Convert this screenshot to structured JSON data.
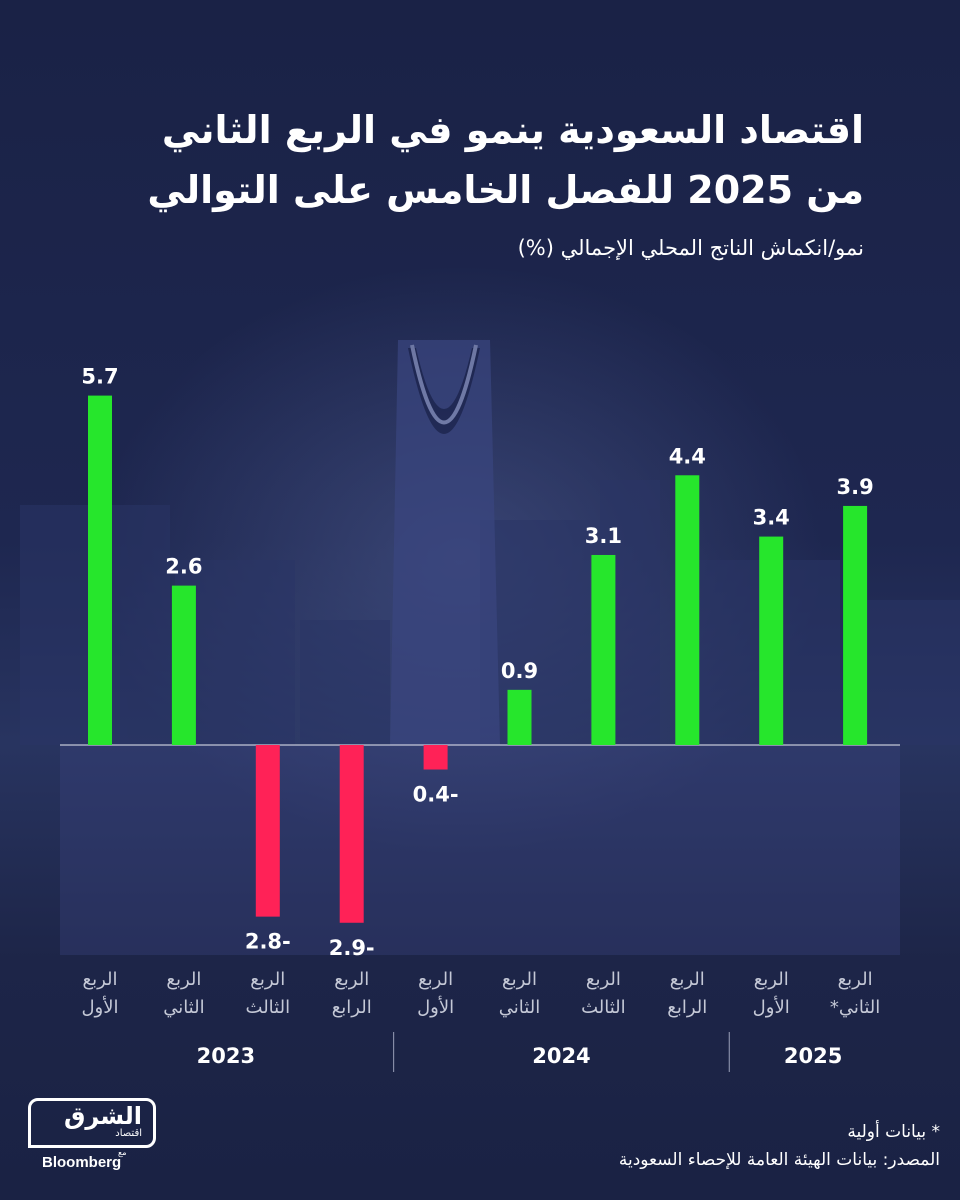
{
  "header": {
    "title_line1": "اقتصاد السعودية ينمو في  الربع الثاني",
    "title_line2": "من 2025 للفصل الخامس على التوالي",
    "subtitle": "نمو/انكماش الناتج المحلي الإجمالي (%)"
  },
  "footer": {
    "note": "* بيانات أولية",
    "source": "المصدر: بيانات الهيئة العامة للإحصاء السعودية"
  },
  "logo": {
    "main": "الشرق",
    "sub": "اقتصاد",
    "with": "مع",
    "partner": "Bloomberg"
  },
  "colors": {
    "positive": "#26e62c",
    "negative": "#ff2257",
    "background": "#1b2244",
    "text": "#ffffff",
    "tick_label": "#c4c8d6"
  },
  "chart_data": {
    "type": "bar",
    "title": "اقتصاد السعودية ينمو في  الربع الثاني من 2025 للفصل الخامس على التوالي",
    "ylabel": "نمو/انكماش الناتج المحلي الإجمالي (%)",
    "ylim": [
      -4,
      6
    ],
    "grid": false,
    "categories": [
      {
        "label_line1": "الربع",
        "label_line2": "الأول",
        "year": "2023"
      },
      {
        "label_line1": "الربع",
        "label_line2": "الثاني",
        "year": "2023"
      },
      {
        "label_line1": "الربع",
        "label_line2": "الثالث",
        "year": "2023"
      },
      {
        "label_line1": "الربع",
        "label_line2": "الرابع",
        "year": "2023"
      },
      {
        "label_line1": "الربع",
        "label_line2": "الأول",
        "year": "2024"
      },
      {
        "label_line1": "الربع",
        "label_line2": "الثاني",
        "year": "2024"
      },
      {
        "label_line1": "الربع",
        "label_line2": "الثالث",
        "year": "2024"
      },
      {
        "label_line1": "الربع",
        "label_line2": "الرابع",
        "year": "2024"
      },
      {
        "label_line1": "الربع",
        "label_line2": "الأول",
        "year": "2025"
      },
      {
        "label_line1": "الربع",
        "label_line2": "الثاني*",
        "year": "2025"
      }
    ],
    "values": [
      5.7,
      2.6,
      -2.8,
      -2.9,
      -0.4,
      0.9,
      3.1,
      4.4,
      3.4,
      3.9
    ],
    "value_labels": [
      "5.7",
      "2.6",
      "2.8-",
      "2.9-",
      "0.4-",
      "0.9",
      "3.1",
      "4.4",
      "3.4",
      "3.9"
    ],
    "years": [
      "2023",
      "2024",
      "2025"
    ]
  }
}
